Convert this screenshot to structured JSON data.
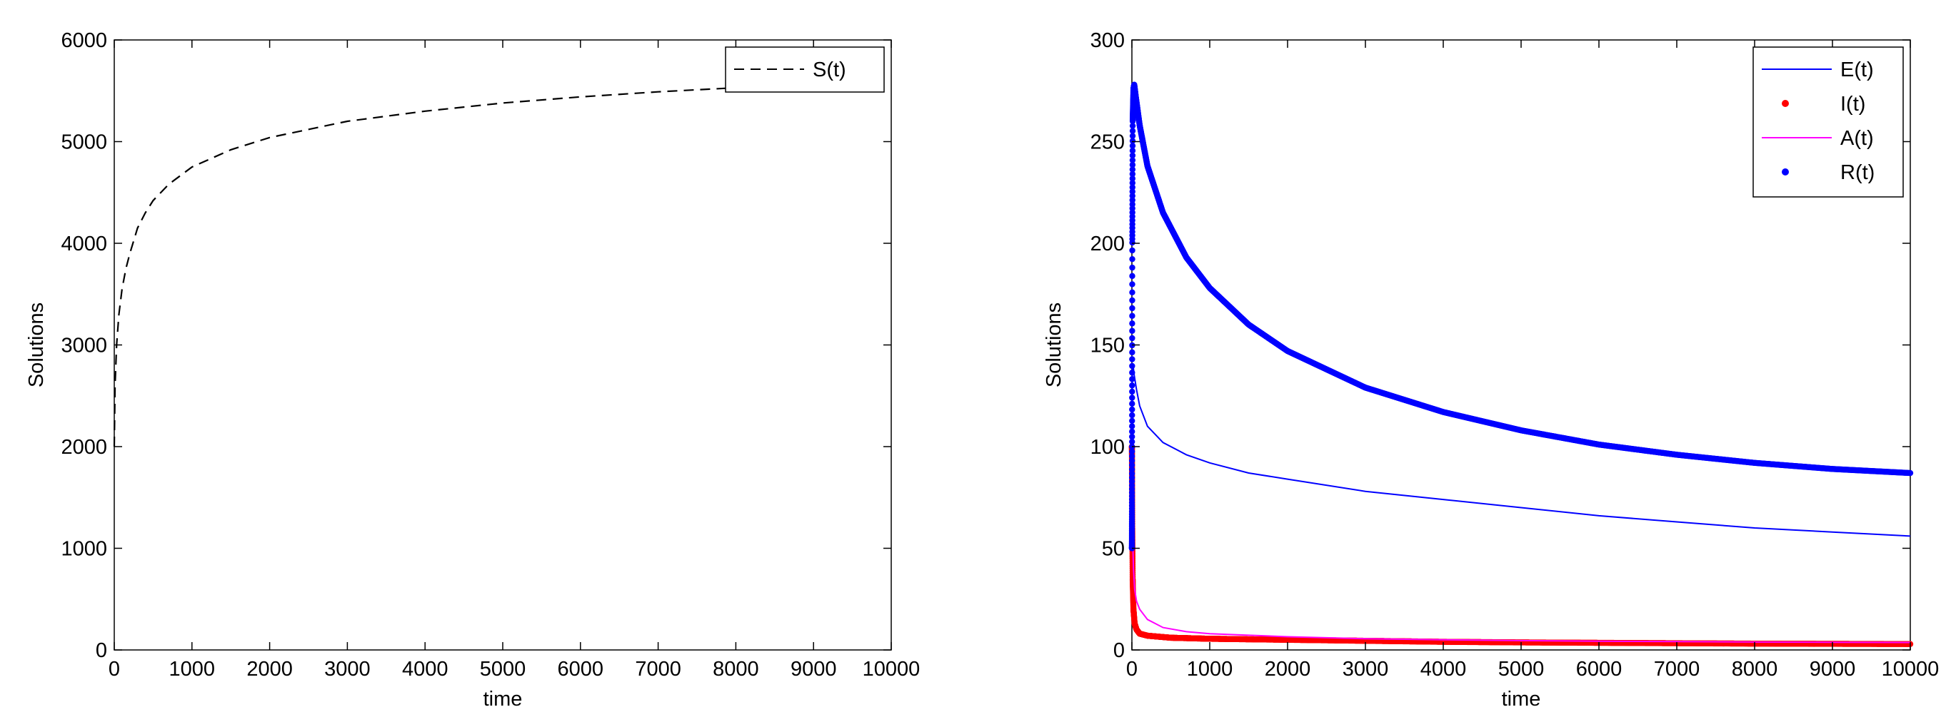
{
  "chart_data": [
    {
      "type": "line",
      "xlabel": "time",
      "ylabel": "Solutions",
      "xlim": [
        0,
        10000
      ],
      "ylim": [
        0,
        6000
      ],
      "xticks": [
        0,
        1000,
        2000,
        3000,
        4000,
        5000,
        6000,
        7000,
        8000,
        9000,
        10000
      ],
      "yticks": [
        0,
        1000,
        2000,
        3000,
        4000,
        5000,
        6000
      ],
      "grid": false,
      "legend_position": "top-right",
      "series": [
        {
          "name": "S(t)",
          "style": "dashed",
          "color": "#000000",
          "x": [
            0,
            10,
            30,
            60,
            100,
            150,
            200,
            300,
            400,
            500,
            700,
            1000,
            1500,
            2000,
            3000,
            4000,
            5000,
            6000,
            7000,
            8000,
            8300
          ],
          "y": [
            2000,
            2600,
            3000,
            3300,
            3550,
            3750,
            3900,
            4150,
            4300,
            4420,
            4580,
            4750,
            4920,
            5040,
            5200,
            5300,
            5380,
            5440,
            5490,
            5530,
            5540
          ]
        }
      ]
    },
    {
      "type": "line",
      "xlabel": "time",
      "ylabel": "Solutions",
      "xlim": [
        0,
        10000
      ],
      "ylim": [
        0,
        300
      ],
      "xticks": [
        0,
        1000,
        2000,
        3000,
        4000,
        5000,
        6000,
        7000,
        8000,
        9000,
        10000
      ],
      "yticks": [
        0,
        50,
        100,
        150,
        200,
        250,
        300
      ],
      "grid": false,
      "legend_position": "top-right",
      "series": [
        {
          "name": "E(t)",
          "style": "solid",
          "color": "#0000ff",
          "x": [
            0,
            5,
            15,
            30,
            60,
            100,
            200,
            400,
            700,
            1000,
            1500,
            2000,
            3000,
            4000,
            5000,
            6000,
            7000,
            8000,
            9000,
            10000
          ],
          "y": [
            100,
            135,
            140,
            135,
            128,
            120,
            110,
            102,
            96,
            92,
            87,
            84,
            78,
            74,
            70,
            66,
            63,
            60,
            58,
            56
          ]
        },
        {
          "name": "I(t)",
          "style": "markers",
          "color": "#ff0000",
          "x": [
            0,
            5,
            10,
            20,
            35,
            60,
            100,
            200,
            500,
            1000,
            2000,
            3000,
            4000,
            5000,
            6000,
            7000,
            8000,
            9000,
            10000
          ],
          "y": [
            100,
            60,
            35,
            20,
            13,
            10,
            8,
            7,
            6,
            5.5,
            5,
            4.5,
            4,
            3.7,
            3.5,
            3.3,
            3.1,
            3,
            2.9
          ]
        },
        {
          "name": "A(t)",
          "style": "solid",
          "color": "#ff00ff",
          "x": [
            0,
            5,
            10,
            20,
            35,
            60,
            100,
            200,
            400,
            700,
            1000,
            2000,
            3000,
            4000,
            5000,
            6000,
            7000,
            8000,
            9000,
            10000
          ],
          "y": [
            50,
            70,
            55,
            40,
            30,
            24,
            20,
            15,
            11,
            9,
            8,
            6.5,
            5.5,
            5,
            4.6,
            4.3,
            4.1,
            3.9,
            3.8,
            3.7
          ]
        },
        {
          "name": "R(t)",
          "style": "markers",
          "color": "#0000ff",
          "x": [
            0,
            5,
            10,
            20,
            30,
            50,
            100,
            200,
            400,
            700,
            1000,
            1500,
            2000,
            3000,
            4000,
            5000,
            6000,
            7000,
            8000,
            9000,
            10000
          ],
          "y": [
            50,
            200,
            260,
            276,
            278,
            272,
            258,
            238,
            215,
            193,
            178,
            160,
            147,
            129,
            117,
            108,
            101,
            96,
            92,
            89,
            87
          ]
        }
      ]
    }
  ]
}
